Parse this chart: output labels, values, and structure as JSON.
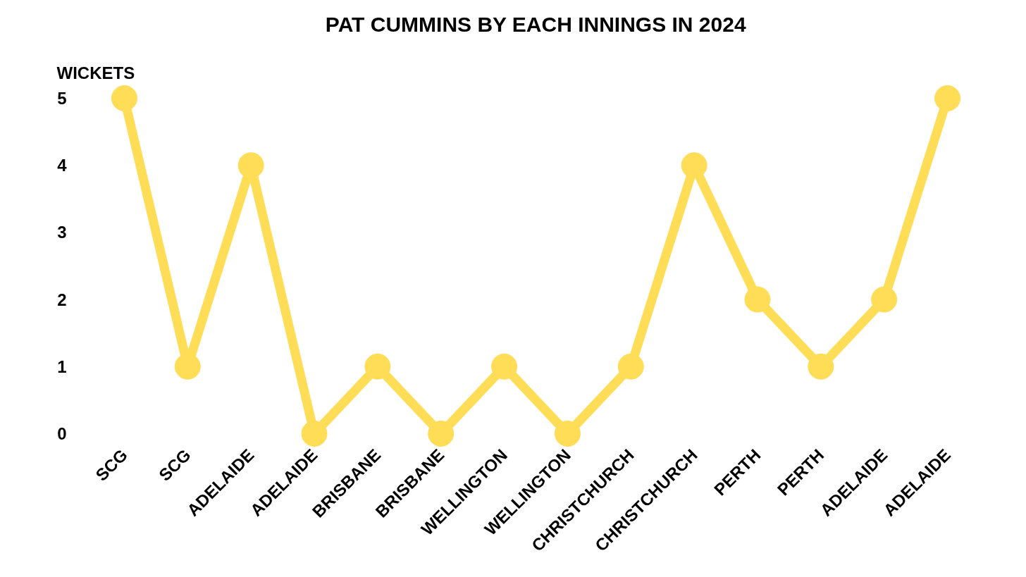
{
  "chart_data": {
    "type": "line",
    "title": "PAT CUMMINS BY EACH INNINGS IN 2024",
    "ylabel": "WICKETS",
    "categories": [
      "SCG",
      "SCG",
      "ADELAIDE",
      "ADELAIDE",
      "BRISBANE",
      "BRISBANE",
      "WELLINGTON",
      "WELLINGTON",
      "CHRISTCHURCH",
      "CHRISTCHURCH",
      "PERTH",
      "PERTH",
      "ADELAIDE",
      "ADELAIDE"
    ],
    "series": [
      {
        "color": "#ffdd57",
        "values": [
          5,
          1,
          4,
          0,
          1,
          0,
          1,
          0,
          1,
          4,
          2,
          1,
          2,
          5
        ]
      }
    ],
    "ylim": [
      0,
      5
    ],
    "yticks": [
      0,
      1,
      2,
      3,
      4,
      5
    ],
    "grid": false,
    "marker": "circle",
    "line_style": "solid"
  }
}
